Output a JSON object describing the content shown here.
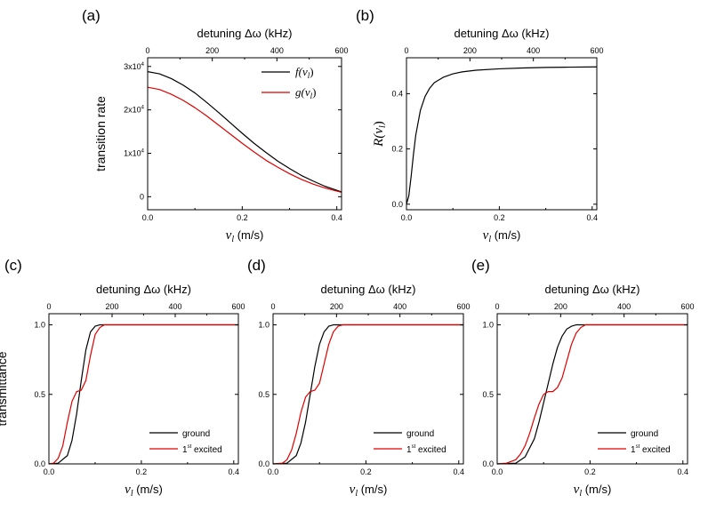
{
  "chart_data": [
    {
      "panel": "(a)",
      "type": "line",
      "xlabel_var": "v",
      "xlabel_sub": "l",
      "xlabel_unit": " (m/s)",
      "top_xlabel": "detuning Δω (kHz)",
      "ylabel": "transition rate",
      "xlim": [
        0,
        0.41
      ],
      "ylim": [
        -3000,
        32000
      ],
      "top_lim": [
        0,
        600
      ],
      "x_ticks": [
        "0.0",
        "0.2",
        "0.4"
      ],
      "x_tick_values": [
        0,
        0.2,
        0.4
      ],
      "top_ticks": [
        "0",
        "200",
        "400",
        "600"
      ],
      "top_tick_values": [
        0,
        200,
        400,
        600
      ],
      "y_ticks": [
        "0",
        "1x10",
        "2x10",
        "3x10"
      ],
      "y_tick_exp": "4",
      "y_tick_values": [
        0,
        10000,
        20000,
        30000
      ],
      "legend": [
        "f(v",
        "g(v"
      ],
      "series": [
        {
          "name": "f(v_l)",
          "color": "#000000",
          "x": [
            0,
            0.025,
            0.05,
            0.075,
            0.1,
            0.125,
            0.15,
            0.175,
            0.2,
            0.225,
            0.25,
            0.275,
            0.3,
            0.325,
            0.35,
            0.375,
            0.41
          ],
          "y": [
            28800,
            28300,
            27200,
            25700,
            23900,
            21700,
            19400,
            17000,
            14600,
            12300,
            10200,
            8200,
            6500,
            4900,
            3600,
            2400,
            1100
          ]
        },
        {
          "name": "g(v_l)",
          "color": "#e00000",
          "x": [
            0,
            0.025,
            0.05,
            0.075,
            0.1,
            0.125,
            0.15,
            0.175,
            0.2,
            0.225,
            0.25,
            0.275,
            0.3,
            0.325,
            0.35,
            0.375,
            0.41
          ],
          "y": [
            25200,
            24700,
            23600,
            22200,
            20500,
            18600,
            16500,
            14400,
            12300,
            10300,
            8400,
            6800,
            5300,
            4000,
            2900,
            2000,
            1000
          ]
        }
      ]
    },
    {
      "panel": "(b)",
      "type": "line",
      "xlabel_var": "v",
      "xlabel_sub": "l",
      "xlabel_unit": " (m/s)",
      "top_xlabel": "detuning Δω (kHz)",
      "ylabel_var": "R(v",
      "ylabel_sub": "l",
      "ylabel_close": ")",
      "xlim": [
        0,
        0.41
      ],
      "ylim": [
        -0.02,
        0.53
      ],
      "top_lim": [
        0,
        600
      ],
      "x_ticks": [
        "0.0",
        "0.2",
        "0.4"
      ],
      "x_tick_values": [
        0,
        0.2,
        0.4
      ],
      "top_ticks": [
        "0",
        "200",
        "400",
        "600"
      ],
      "top_tick_values": [
        0,
        200,
        400,
        600
      ],
      "y_ticks": [
        "0.0",
        "0.2",
        "0.4"
      ],
      "y_tick_values": [
        0,
        0.2,
        0.4
      ],
      "series": [
        {
          "name": "R(v_l)",
          "color": "#000000",
          "x": [
            0,
            0.005,
            0.01,
            0.015,
            0.02,
            0.03,
            0.04,
            0.05,
            0.06,
            0.08,
            0.1,
            0.12,
            0.15,
            0.2,
            0.25,
            0.3,
            0.35,
            0.41
          ],
          "y": [
            0.0,
            0.03,
            0.1,
            0.18,
            0.25,
            0.34,
            0.39,
            0.42,
            0.44,
            0.46,
            0.472,
            0.479,
            0.485,
            0.49,
            0.493,
            0.495,
            0.496,
            0.497
          ]
        }
      ]
    },
    {
      "panel": "(c)",
      "type": "line",
      "xlabel_var": "v",
      "xlabel_sub": "l",
      "xlabel_unit": " (m/s)",
      "top_xlabel": "detuning Δω (kHz)",
      "ylabel": "transmittance",
      "xlim": [
        0,
        0.41
      ],
      "ylim": [
        0,
        1.08
      ],
      "top_lim": [
        0,
        600
      ],
      "x_ticks": [
        "0.0",
        "0.2",
        "0.4"
      ],
      "x_tick_values": [
        0,
        0.2,
        0.4
      ],
      "top_ticks": [
        "0",
        "200",
        "400",
        "600"
      ],
      "top_tick_values": [
        0,
        200,
        400,
        600
      ],
      "y_ticks": [
        "0.0",
        "0.5",
        "1.0"
      ],
      "y_tick_values": [
        0,
        0.5,
        1.0
      ],
      "legend": [
        "ground",
        "1",
        "st",
        " excited"
      ],
      "series": [
        {
          "name": "ground",
          "color": "#000000",
          "x": [
            0,
            0.02,
            0.04,
            0.05,
            0.06,
            0.07,
            0.08,
            0.09,
            0.1,
            0.11,
            0.12,
            0.41
          ],
          "y": [
            0,
            0.005,
            0.06,
            0.17,
            0.36,
            0.6,
            0.82,
            0.95,
            0.99,
            1.0,
            1.0,
            1.0
          ]
        },
        {
          "name": "1st excited",
          "color": "#e00000",
          "x": [
            0,
            0.01,
            0.02,
            0.03,
            0.04,
            0.05,
            0.06,
            0.07,
            0.08,
            0.09,
            0.1,
            0.11,
            0.12,
            0.13,
            0.41
          ],
          "y": [
            0,
            0.005,
            0.04,
            0.13,
            0.3,
            0.45,
            0.52,
            0.53,
            0.6,
            0.78,
            0.93,
            0.98,
            1.0,
            1.0,
            1.0
          ]
        }
      ]
    },
    {
      "panel": "(d)",
      "type": "line",
      "xlabel_var": "v",
      "xlabel_sub": "l",
      "xlabel_unit": " (m/s)",
      "top_xlabel": "detuning Δω (kHz)",
      "xlim": [
        0,
        0.41
      ],
      "ylim": [
        0,
        1.08
      ],
      "top_lim": [
        0,
        600
      ],
      "x_ticks": [
        "0.0",
        "0.2",
        "0.4"
      ],
      "x_tick_values": [
        0,
        0.2,
        0.4
      ],
      "top_ticks": [
        "0",
        "200",
        "400",
        "600"
      ],
      "top_tick_values": [
        0,
        200,
        400,
        600
      ],
      "y_ticks": [
        "0.0",
        "0.5",
        "1.0"
      ],
      "y_tick_values": [
        0,
        0.5,
        1.0
      ],
      "legend": [
        "ground",
        "1",
        "st",
        " excited"
      ],
      "series": [
        {
          "name": "ground",
          "color": "#000000",
          "x": [
            0,
            0.03,
            0.05,
            0.06,
            0.07,
            0.08,
            0.09,
            0.1,
            0.11,
            0.12,
            0.13,
            0.14,
            0.41
          ],
          "y": [
            0,
            0.005,
            0.06,
            0.15,
            0.3,
            0.5,
            0.7,
            0.86,
            0.95,
            0.99,
            1.0,
            1.0,
            1.0
          ]
        },
        {
          "name": "1st excited",
          "color": "#e00000",
          "x": [
            0,
            0.02,
            0.03,
            0.04,
            0.05,
            0.06,
            0.07,
            0.08,
            0.09,
            0.1,
            0.11,
            0.12,
            0.13,
            0.14,
            0.15,
            0.16,
            0.41
          ],
          "y": [
            0,
            0.005,
            0.03,
            0.1,
            0.22,
            0.37,
            0.48,
            0.52,
            0.53,
            0.58,
            0.72,
            0.86,
            0.95,
            0.99,
            1.0,
            1.0,
            1.0
          ]
        }
      ]
    },
    {
      "panel": "(e)",
      "type": "line",
      "xlabel_var": "v",
      "xlabel_sub": "l",
      "xlabel_unit": " (m/s)",
      "top_xlabel": "detuning Δω (kHz)",
      "xlim": [
        0,
        0.41
      ],
      "ylim": [
        0,
        1.08
      ],
      "top_lim": [
        0,
        600
      ],
      "x_ticks": [
        "0.0",
        "0.2",
        "0.4"
      ],
      "x_tick_values": [
        0,
        0.2,
        0.4
      ],
      "top_ticks": [
        "0",
        "200",
        "400",
        "600"
      ],
      "top_tick_values": [
        0,
        200,
        400,
        600
      ],
      "y_ticks": [
        "0.0",
        "0.5",
        "1.0"
      ],
      "y_tick_values": [
        0,
        0.5,
        1.0
      ],
      "legend": [
        "ground",
        "1",
        "st",
        " excited"
      ],
      "series": [
        {
          "name": "ground",
          "color": "#000000",
          "x": [
            0,
            0.04,
            0.06,
            0.08,
            0.09,
            0.1,
            0.11,
            0.12,
            0.13,
            0.14,
            0.15,
            0.16,
            0.17,
            0.18,
            0.41
          ],
          "y": [
            0,
            0.005,
            0.05,
            0.18,
            0.3,
            0.44,
            0.58,
            0.72,
            0.84,
            0.92,
            0.97,
            0.99,
            1.0,
            1.0,
            1.0
          ]
        },
        {
          "name": "1st excited",
          "color": "#e00000",
          "x": [
            0,
            0.02,
            0.04,
            0.05,
            0.06,
            0.07,
            0.08,
            0.09,
            0.1,
            0.11,
            0.12,
            0.13,
            0.14,
            0.15,
            0.16,
            0.17,
            0.18,
            0.19,
            0.2,
            0.41
          ],
          "y": [
            0,
            0.005,
            0.03,
            0.07,
            0.13,
            0.22,
            0.33,
            0.43,
            0.5,
            0.52,
            0.52,
            0.55,
            0.62,
            0.74,
            0.86,
            0.94,
            0.98,
            1.0,
            1.0,
            1.0
          ]
        }
      ]
    }
  ]
}
